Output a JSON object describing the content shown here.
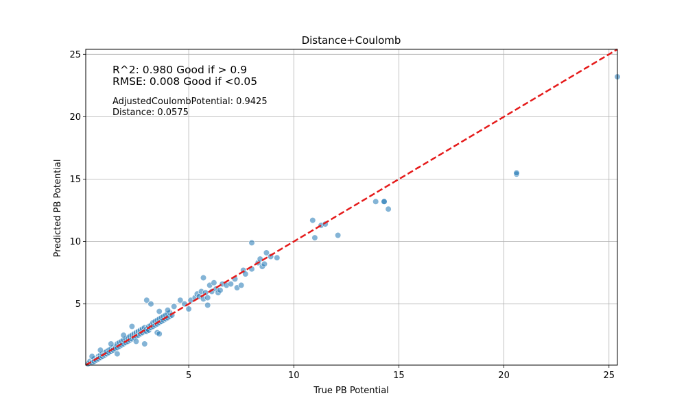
{
  "chart_data": {
    "type": "scatter",
    "title": "Distance+Coulomb",
    "xlabel": "True PB Potential",
    "ylabel": "Predicted PB Potential",
    "xlim": [
      0.1,
      25.4
    ],
    "ylim": [
      0.1,
      25.4
    ],
    "xticks": [
      5,
      10,
      15,
      20,
      25
    ],
    "yticks": [
      5,
      10,
      15,
      20,
      25
    ],
    "grid": true,
    "point_color": "#1f77b4",
    "reference_line": {
      "style": "dashed",
      "color": "#e51a1a",
      "from": [
        0.1,
        0.1
      ],
      "to": [
        25.4,
        25.4
      ]
    },
    "annotations": [
      "R^2: 0.980 Good if > 0.9",
      "RMSE: 0.008 Good if <0.05",
      "AdjustedCoulombPotential: 0.9425",
      "Distance: 0.0575"
    ],
    "points": [
      [
        0.2,
        0.2
      ],
      [
        0.3,
        0.4
      ],
      [
        0.4,
        0.3
      ],
      [
        0.5,
        0.6
      ],
      [
        0.5,
        0.4
      ],
      [
        0.6,
        0.5
      ],
      [
        0.7,
        0.8
      ],
      [
        0.7,
        0.6
      ],
      [
        0.8,
        0.9
      ],
      [
        0.8,
        0.7
      ],
      [
        0.9,
        0.8
      ],
      [
        0.9,
        1.0
      ],
      [
        1.0,
        1.1
      ],
      [
        1.0,
        0.9
      ],
      [
        1.1,
        1.0
      ],
      [
        1.1,
        1.2
      ],
      [
        1.2,
        1.3
      ],
      [
        1.2,
        1.1
      ],
      [
        1.3,
        1.2
      ],
      [
        1.3,
        1.4
      ],
      [
        1.4,
        1.5
      ],
      [
        1.4,
        1.3
      ],
      [
        1.5,
        1.6
      ],
      [
        1.5,
        1.4
      ],
      [
        1.6,
        1.5
      ],
      [
        1.6,
        1.8
      ],
      [
        1.7,
        1.6
      ],
      [
        1.7,
        1.9
      ],
      [
        1.8,
        1.7
      ],
      [
        1.8,
        2.0
      ],
      [
        1.9,
        1.8
      ],
      [
        1.9,
        2.1
      ],
      [
        2.0,
        2.2
      ],
      [
        2.0,
        1.9
      ],
      [
        2.1,
        2.0
      ],
      [
        2.1,
        2.3
      ],
      [
        2.2,
        2.1
      ],
      [
        2.2,
        2.4
      ],
      [
        2.3,
        2.2
      ],
      [
        2.3,
        2.5
      ],
      [
        2.4,
        2.3
      ],
      [
        2.4,
        2.6
      ],
      [
        2.5,
        2.4
      ],
      [
        2.5,
        2.7
      ],
      [
        2.6,
        2.5
      ],
      [
        2.6,
        2.8
      ],
      [
        2.7,
        2.6
      ],
      [
        2.7,
        2.9
      ],
      [
        2.8,
        2.7
      ],
      [
        2.8,
        3.0
      ],
      [
        2.9,
        2.8
      ],
      [
        2.9,
        3.1
      ],
      [
        3.0,
        3.0
      ],
      [
        3.0,
        2.8
      ],
      [
        3.1,
        3.2
      ],
      [
        3.1,
        2.9
      ],
      [
        3.2,
        3.1
      ],
      [
        3.2,
        3.3
      ],
      [
        3.3,
        3.2
      ],
      [
        3.3,
        3.5
      ],
      [
        3.4,
        3.3
      ],
      [
        3.4,
        3.6
      ],
      [
        3.5,
        3.4
      ],
      [
        3.5,
        3.7
      ],
      [
        3.6,
        3.5
      ],
      [
        3.6,
        3.8
      ],
      [
        3.7,
        3.6
      ],
      [
        3.7,
        3.9
      ],
      [
        3.8,
        3.7
      ],
      [
        3.8,
        4.0
      ],
      [
        3.9,
        3.8
      ],
      [
        3.9,
        4.1
      ],
      [
        4.0,
        3.9
      ],
      [
        4.0,
        4.2
      ],
      [
        4.1,
        4.0
      ],
      [
        4.1,
        4.3
      ],
      [
        4.2,
        4.1
      ],
      [
        0.4,
        0.8
      ],
      [
        0.8,
        1.3
      ],
      [
        1.3,
        1.8
      ],
      [
        1.6,
        1.0
      ],
      [
        1.9,
        2.5
      ],
      [
        2.3,
        3.2
      ],
      [
        2.5,
        2.0
      ],
      [
        2.9,
        1.8
      ],
      [
        3.0,
        5.3
      ],
      [
        3.2,
        5.0
      ],
      [
        3.5,
        2.7
      ],
      [
        3.6,
        2.6
      ],
      [
        3.6,
        4.4
      ],
      [
        4.0,
        4.5
      ],
      [
        4.3,
        4.8
      ],
      [
        4.6,
        5.3
      ],
      [
        4.8,
        5.0
      ],
      [
        5.1,
        5.3
      ],
      [
        5.0,
        4.6
      ],
      [
        5.3,
        5.5
      ],
      [
        5.4,
        5.8
      ],
      [
        5.5,
        5.6
      ],
      [
        5.6,
        6.0
      ],
      [
        5.7,
        5.4
      ],
      [
        5.7,
        7.1
      ],
      [
        5.8,
        5.9
      ],
      [
        5.9,
        5.5
      ],
      [
        5.9,
        4.9
      ],
      [
        6.0,
        6.5
      ],
      [
        6.1,
        6.0
      ],
      [
        6.2,
        6.7
      ],
      [
        6.3,
        6.2
      ],
      [
        6.4,
        5.9
      ],
      [
        6.5,
        6.1
      ],
      [
        6.6,
        6.6
      ],
      [
        6.8,
        6.5
      ],
      [
        7.0,
        6.6
      ],
      [
        7.2,
        7.0
      ],
      [
        7.3,
        6.3
      ],
      [
        7.5,
        6.5
      ],
      [
        7.6,
        7.7
      ],
      [
        7.7,
        7.4
      ],
      [
        8.0,
        7.8
      ],
      [
        8.0,
        9.9
      ],
      [
        8.3,
        8.3
      ],
      [
        8.4,
        8.6
      ],
      [
        8.5,
        8.0
      ],
      [
        8.6,
        8.2
      ],
      [
        8.7,
        9.1
      ],
      [
        8.9,
        8.8
      ],
      [
        9.2,
        8.7
      ],
      [
        10.9,
        11.7
      ],
      [
        11.0,
        10.3
      ],
      [
        11.3,
        11.3
      ],
      [
        11.5,
        11.4
      ],
      [
        12.1,
        10.5
      ],
      [
        13.9,
        13.2
      ],
      [
        14.3,
        13.2
      ],
      [
        14.3,
        13.2
      ],
      [
        14.5,
        12.6
      ],
      [
        20.6,
        15.4
      ],
      [
        20.6,
        15.5
      ],
      [
        25.4,
        23.2
      ]
    ]
  }
}
